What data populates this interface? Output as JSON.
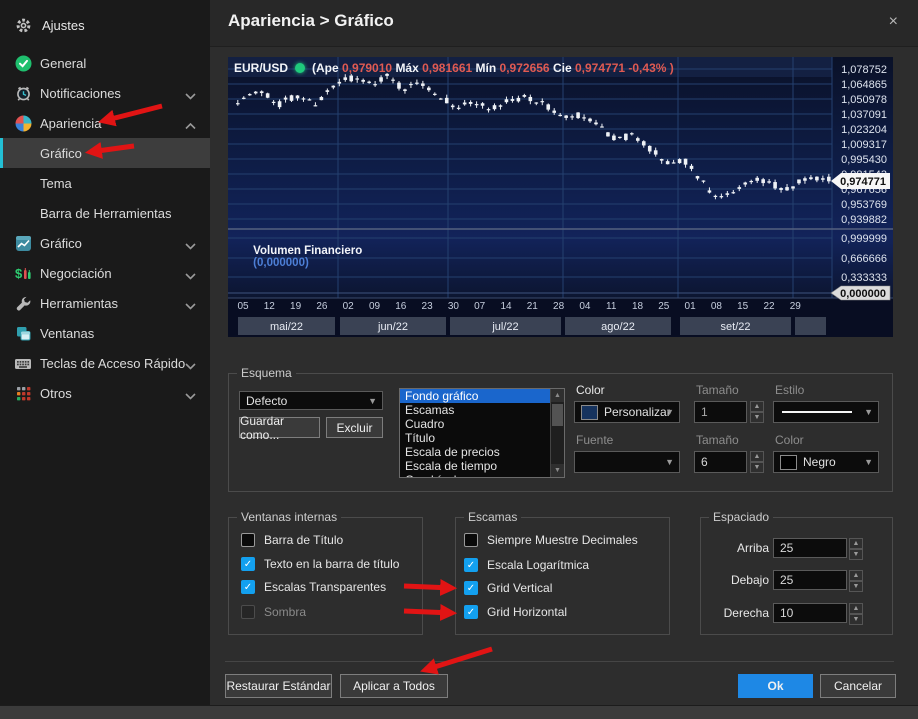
{
  "sidebar": {
    "title": "Ajustes",
    "items": [
      {
        "id": "general",
        "label": "General",
        "icon": "check-circle-icon"
      },
      {
        "id": "notificaciones",
        "label": "Notificaciones",
        "icon": "alarm-icon",
        "chevron": "down"
      },
      {
        "id": "apariencia",
        "label": "Apariencia",
        "icon": "palette-icon",
        "chevron": "up"
      },
      {
        "id": "apariencia-grafico",
        "label": "Gráfico",
        "sub": true,
        "selected": true
      },
      {
        "id": "apariencia-tema",
        "label": "Tema",
        "sub": true
      },
      {
        "id": "apariencia-barra",
        "label": "Barra de Herramientas",
        "sub": true
      },
      {
        "id": "grafico",
        "label": "Gráfico",
        "icon": "chart-icon",
        "chevron": "down"
      },
      {
        "id": "negociacion",
        "label": "Negociación",
        "icon": "dollar-icon",
        "chevron": "down"
      },
      {
        "id": "herramientas",
        "label": "Herramientas",
        "icon": "wrench-icon",
        "chevron": "down"
      },
      {
        "id": "ventanas",
        "label": "Ventanas",
        "icon": "windows-icon"
      },
      {
        "id": "teclas",
        "label": "Teclas de Acceso Rápido",
        "icon": "keyboard-icon",
        "chevron": "down"
      },
      {
        "id": "otros",
        "label": "Otros",
        "icon": "dots-icon",
        "chevron": "down"
      }
    ]
  },
  "header": {
    "title": "Apariencia > Gráfico",
    "close_label": "×"
  },
  "chart_data": {
    "type": "candlestick",
    "symbol": "EUR/USD",
    "quote": {
      "open_label": "(Ape",
      "open": "0,979010",
      "high_label": "Máx",
      "high": "0,981661",
      "low_label": "Mín",
      "low": "0,972656",
      "close_label": "Cie",
      "close": "0,974771",
      "change": "-0,43% )"
    },
    "price_axis": {
      "labels": [
        "1,078752",
        "1,064865",
        "1,050978",
        "1,037091",
        "1,023204",
        "1,009317",
        "0,995430",
        "0,981543",
        "0,967656",
        "0,953769",
        "0,939882"
      ],
      "top_value": 1.078752,
      "step": 0.013887
    },
    "current_price": "0,974771",
    "volume_pane": {
      "title": "Volumen Financiero",
      "value": "(0,000000)",
      "labels": [
        "0,999999",
        "0,666666",
        "0,333333"
      ],
      "current": "0,000000"
    },
    "time_axis": {
      "days": [
        "05",
        "12",
        "19",
        "26",
        "02",
        "09",
        "16",
        "23",
        "30",
        "07",
        "14",
        "21",
        "28",
        "04",
        "11",
        "18",
        "25",
        "01",
        "08",
        "15",
        "22",
        "29"
      ],
      "months": [
        "mai/22",
        "jun/22",
        "jul/22",
        "ago/22",
        "set/22"
      ]
    },
    "last_candle": {
      "open": 0.97901,
      "high": 0.981661,
      "low": 0.972656,
      "close": 0.974771
    },
    "price_path": [
      [
        0,
        1.05
      ],
      [
        0.04,
        1.058
      ],
      [
        0.07,
        1.046
      ],
      [
        0.1,
        1.055
      ],
      [
        0.13,
        1.047
      ],
      [
        0.16,
        1.06
      ],
      [
        0.19,
        1.071
      ],
      [
        0.22,
        1.065
      ],
      [
        0.25,
        1.072
      ],
      [
        0.28,
        1.06
      ],
      [
        0.31,
        1.066
      ],
      [
        0.34,
        1.055
      ],
      [
        0.37,
        1.043
      ],
      [
        0.4,
        1.049
      ],
      [
        0.43,
        1.041
      ],
      [
        0.46,
        1.049
      ],
      [
        0.49,
        1.053
      ],
      [
        0.52,
        1.045
      ],
      [
        0.55,
        1.033
      ],
      [
        0.58,
        1.036
      ],
      [
        0.61,
        1.025
      ],
      [
        0.64,
        1.013
      ],
      [
        0.67,
        1.018
      ],
      [
        0.7,
        1.004
      ],
      [
        0.73,
        0.991
      ],
      [
        0.755,
        0.995
      ],
      [
        0.78,
        0.978
      ],
      [
        0.8,
        0.966
      ],
      [
        0.82,
        0.958
      ],
      [
        0.85,
        0.97
      ],
      [
        0.88,
        0.978
      ],
      [
        0.905,
        0.972
      ],
      [
        0.93,
        0.966
      ],
      [
        0.95,
        0.975
      ],
      [
        0.975,
        0.979
      ],
      [
        1,
        0.9748
      ]
    ]
  },
  "esquema": {
    "title": "Esquema",
    "scheme_value": "Defecto",
    "save_as_label": "Guardar como...",
    "delete_label": "Excluir",
    "elements": [
      "Fondo gráfico",
      "Escamas",
      "Cuadro",
      "Título",
      "Escala de precios",
      "Escala de tiempo",
      "Cuadrícula"
    ],
    "selected_element": "Fondo gráfico",
    "color_label": "Color",
    "color_value": "Personalizar .",
    "color_swatch": "#16335e",
    "size_label": "Tamaño",
    "size_value": "1",
    "style_label": "Estilo",
    "font_label": "Fuente",
    "font_value": "",
    "size2_label": "Tamaño",
    "size2_value": "6",
    "color2_label": "Color",
    "color2_value": "Negro",
    "color2_swatch": "#000000"
  },
  "ventanas_internas": {
    "title": "Ventanas internas",
    "options": [
      {
        "label": "Barra de Título",
        "checked": false
      },
      {
        "label": "Texto en la barra de título",
        "checked": true
      },
      {
        "label": "Escalas Transparentes",
        "checked": true
      },
      {
        "label": "Sombra",
        "checked": false,
        "disabled": true
      }
    ]
  },
  "escamas": {
    "title": "Escamas",
    "options": [
      {
        "label": "Siempre Muestre Decimales",
        "checked": false
      },
      {
        "label": "Escala Logarítmica",
        "checked": true
      },
      {
        "label": "Grid Vertical",
        "checked": true
      },
      {
        "label": "Grid Horizontal",
        "checked": true
      }
    ]
  },
  "espaciado": {
    "title": "Espaciado",
    "fields": [
      {
        "label": "Arriba",
        "value": "25"
      },
      {
        "label": "Debajo",
        "value": "25"
      },
      {
        "label": "Derecha",
        "value": "10"
      }
    ]
  },
  "footer": {
    "restore_label": "Restaurar Estándar",
    "apply_all_label": "Aplicar a Todos",
    "ok_label": "Ok",
    "cancel_label": "Cancelar"
  },
  "colors": {
    "accent_blue": "#1e88e5",
    "checkbox_blue": "#13a0ef",
    "selection_blue": "#1a66cc",
    "teal_accent": "#23c0d5",
    "arrow_red": "#e11414",
    "quote_red": "#e05a52",
    "volume_blue": "#4d7fd6",
    "candle": "#eef1f5",
    "chart_grid": "#24406f"
  }
}
